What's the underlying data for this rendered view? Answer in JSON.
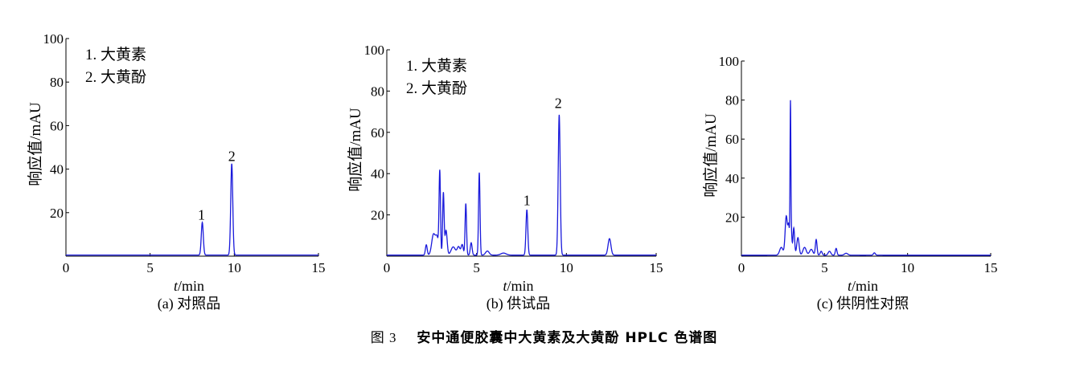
{
  "figure_caption": {
    "number": "图 3",
    "title": "安中通便胶囊中大黄素及大黄酚 HPLC 色谱图"
  },
  "chart_data": [
    {
      "type": "line",
      "panel_label": "(a)  对照品",
      "xlabel_italic": "t",
      "xlabel_unit": "/min",
      "ylabel": "响应值/mAU",
      "xlim": [
        0,
        15
      ],
      "ylim": [
        0,
        100
      ],
      "xticks": [
        0,
        5,
        10,
        15
      ],
      "yticks": [
        20,
        40,
        60,
        80,
        100
      ],
      "legend": [
        "1. 大黄素",
        "2. 大黄酚"
      ],
      "legend_position": "top-left",
      "line_color": "#1a1adb",
      "baseline": 0.5,
      "peaks": [
        {
          "t": 8.1,
          "h": 15,
          "w": 0.06
        },
        {
          "t": 9.85,
          "h": 42,
          "w": 0.06
        }
      ],
      "peak_labels": [
        {
          "text": "1",
          "t": 8.05,
          "y": 16
        },
        {
          "text": "2",
          "t": 9.85,
          "y": 43
        }
      ]
    },
    {
      "type": "line",
      "panel_label": "(b) 供试品",
      "xlabel_italic": "t",
      "xlabel_unit": "/min",
      "ylabel": "响应值/mAU",
      "xlim": [
        0,
        15
      ],
      "ylim": [
        0,
        100
      ],
      "xticks": [
        0,
        5,
        10,
        15
      ],
      "yticks": [
        20,
        40,
        60,
        80,
        100
      ],
      "legend": [
        "1. 大黄素",
        "2. 大黄酚"
      ],
      "legend_position": "top-left",
      "line_color": "#1a1adb",
      "baseline": 0.5,
      "peaks": [
        {
          "t": 2.2,
          "h": 5,
          "w": 0.05
        },
        {
          "t": 2.6,
          "h": 10,
          "w": 0.1
        },
        {
          "t": 2.8,
          "h": 8,
          "w": 0.08
        },
        {
          "t": 2.95,
          "h": 40,
          "w": 0.04
        },
        {
          "t": 3.15,
          "h": 30,
          "w": 0.04
        },
        {
          "t": 3.3,
          "h": 12,
          "w": 0.06
        },
        {
          "t": 3.7,
          "h": 4,
          "w": 0.12
        },
        {
          "t": 4.0,
          "h": 4,
          "w": 0.08
        },
        {
          "t": 4.2,
          "h": 5,
          "w": 0.06
        },
        {
          "t": 4.4,
          "h": 25,
          "w": 0.04
        },
        {
          "t": 4.7,
          "h": 6,
          "w": 0.05
        },
        {
          "t": 5.15,
          "h": 40,
          "w": 0.04
        },
        {
          "t": 5.6,
          "h": 2,
          "w": 0.1
        },
        {
          "t": 6.5,
          "h": 1,
          "w": 0.15
        },
        {
          "t": 7.8,
          "h": 22,
          "w": 0.05
        },
        {
          "t": 9.6,
          "h": 68,
          "w": 0.055
        },
        {
          "t": 12.4,
          "h": 8,
          "w": 0.08
        }
      ],
      "peak_labels": [
        {
          "text": "1",
          "t": 7.8,
          "y": 24
        },
        {
          "text": "2",
          "t": 9.55,
          "y": 71
        }
      ]
    },
    {
      "type": "line",
      "panel_label": "(c) 供阴性对照",
      "xlabel_italic": "t",
      "xlabel_unit": "/min",
      "ylabel": "响应值/mAU",
      "xlim": [
        0,
        15
      ],
      "ylim": [
        0,
        100
      ],
      "xticks": [
        0,
        5,
        10,
        15
      ],
      "yticks": [
        20,
        40,
        60,
        80,
        100
      ],
      "legend": [],
      "line_color": "#1a1adb",
      "baseline": 0.5,
      "peaks": [
        {
          "t": 2.4,
          "h": 4,
          "w": 0.1
        },
        {
          "t": 2.7,
          "h": 20,
          "w": 0.07
        },
        {
          "t": 2.85,
          "h": 14,
          "w": 0.05
        },
        {
          "t": 2.95,
          "h": 72,
          "w": 0.025
        },
        {
          "t": 3.0,
          "h": 12,
          "w": 0.04
        },
        {
          "t": 3.15,
          "h": 14,
          "w": 0.05
        },
        {
          "t": 3.4,
          "h": 9,
          "w": 0.07
        },
        {
          "t": 3.8,
          "h": 4,
          "w": 0.1
        },
        {
          "t": 4.2,
          "h": 3,
          "w": 0.1
        },
        {
          "t": 4.5,
          "h": 8,
          "w": 0.05
        },
        {
          "t": 4.8,
          "h": 2,
          "w": 0.06
        },
        {
          "t": 5.3,
          "h": 2,
          "w": 0.08
        },
        {
          "t": 5.7,
          "h": 3.5,
          "w": 0.05
        },
        {
          "t": 6.3,
          "h": 1,
          "w": 0.1
        },
        {
          "t": 8.0,
          "h": 1.2,
          "w": 0.06
        }
      ],
      "peak_labels": []
    }
  ]
}
